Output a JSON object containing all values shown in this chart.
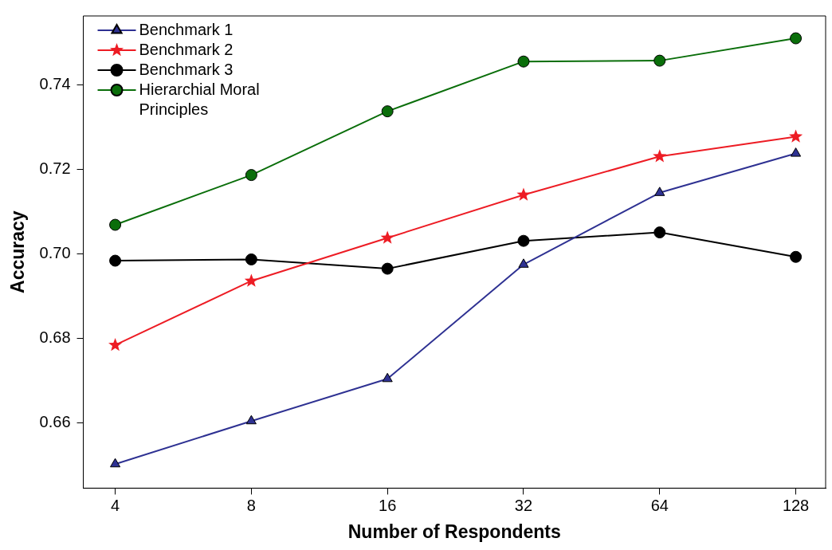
{
  "chart_data": {
    "type": "line",
    "xlabel": "Number of Respondents",
    "ylabel": "Accuracy",
    "x": [
      4,
      8,
      16,
      32,
      64,
      128
    ],
    "log": "x",
    "xlim": [
      3.4,
      149
    ],
    "xticks": [
      4,
      8,
      16,
      32,
      64,
      128
    ],
    "ylim": [
      0.6445,
      0.7564
    ],
    "yticks": [
      0.66,
      0.68,
      {
        "value": 0.7,
        "label": "0.70"
      },
      0.72,
      0.74
    ],
    "grid": false,
    "legend": "top left",
    "line_style": "solid",
    "series": [
      {
        "name": "Benchmark 1",
        "color": "#2e3192",
        "marker": "triangle",
        "values": [
          0.6502,
          0.6604,
          0.6704,
          0.6975,
          0.7145,
          0.7238
        ]
      },
      {
        "name": "Benchmark 2",
        "color": "#ed1c24",
        "marker": "star",
        "values": [
          0.6784,
          0.6936,
          0.7038,
          0.714,
          0.7231,
          0.7278
        ]
      },
      {
        "name": "Benchmark 3",
        "color": "#000000",
        "marker": "circle",
        "values": [
          0.6984,
          0.6987,
          0.6965,
          0.7031,
          0.7051,
          0.6993
        ]
      },
      {
        "name": "Hierarchial Moral Principles",
        "color": "#0a6e0a",
        "marker": "circle",
        "values": [
          0.7069,
          0.7187,
          0.7338,
          0.7456,
          0.7458,
          0.7511
        ]
      }
    ]
  }
}
